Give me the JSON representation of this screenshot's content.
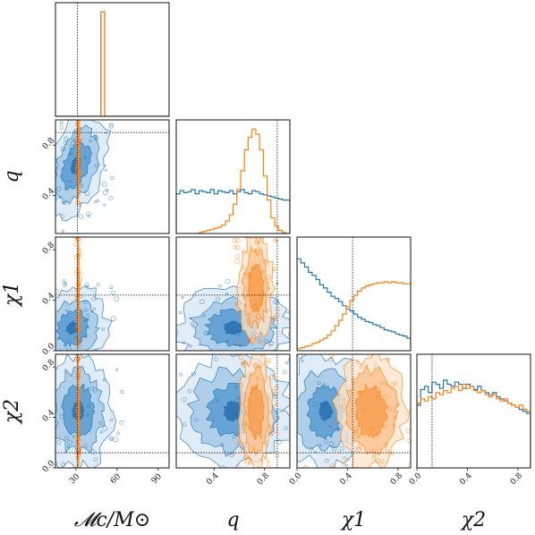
{
  "chart_data": {
    "type": "corner",
    "parameters": [
      {
        "key": "mc",
        "label": "𝓜c/M⊙",
        "range": [
          15,
          98
        ],
        "ticks": [
          {
            "v": 30,
            "t": "30"
          },
          {
            "v": 60,
            "t": "60"
          },
          {
            "v": 90,
            "t": "90"
          }
        ],
        "truth": 31
      },
      {
        "key": "q",
        "label": "q",
        "range": [
          0.1,
          1.0
        ],
        "ticks": [
          {
            "v": 0.4,
            "t": "0.4"
          },
          {
            "v": 0.8,
            "t": "0.8"
          }
        ],
        "truth": 0.9
      },
      {
        "key": "chi1",
        "label": "χ1",
        "range": [
          0.0,
          0.9
        ],
        "ticks": [
          {
            "v": 0.0,
            "t": "0.0"
          },
          {
            "v": 0.4,
            "t": "0.4"
          },
          {
            "v": 0.8,
            "t": "0.8"
          }
        ],
        "truth": 0.44
      },
      {
        "key": "chi2",
        "label": "χ2",
        "range": [
          0.0,
          0.9
        ],
        "ticks": [
          {
            "v": 0.0,
            "t": "0.0"
          },
          {
            "v": 0.4,
            "t": "0.4"
          },
          {
            "v": 0.8,
            "t": "0.8"
          }
        ],
        "truth": 0.12
      }
    ],
    "colors": {
      "blue": "#1f77b4",
      "orange": "#ff7f0e",
      "blue_fill": [
        "#dbe9f6",
        "#a6c9e7",
        "#5b9bd0",
        "#2a6fb0"
      ],
      "orange_fill": [
        "#fde3c8",
        "#fbbf88",
        "#f79a4a"
      ]
    },
    "marginals": [
      {
        "param": "mc",
        "blue": [
          0,
          0,
          0,
          0,
          0,
          0,
          0,
          0,
          0,
          0,
          0,
          0,
          1,
          0,
          0,
          0,
          0,
          0,
          0,
          0,
          0,
          0,
          0,
          0,
          0,
          0,
          0,
          0,
          0,
          0
        ],
        "orange": [
          0,
          0,
          0,
          0,
          0,
          0,
          0,
          0,
          0,
          0,
          0,
          0,
          1,
          0,
          0,
          0,
          0,
          0,
          0,
          0,
          0,
          0,
          0,
          0,
          0,
          0,
          0,
          0,
          0,
          0
        ]
      },
      {
        "param": "q",
        "blue": [
          0.38,
          0.41,
          0.39,
          0.4,
          0.42,
          0.38,
          0.41,
          0.4,
          0.39,
          0.42,
          0.38,
          0.41,
          0.4,
          0.39,
          0.41,
          0.38,
          0.4,
          0.42,
          0.39,
          0.38,
          0.41,
          0.4,
          0.38,
          0.37,
          0.36,
          0.35,
          0.34,
          0.33,
          0.32,
          0.32
        ],
        "orange": [
          0.0,
          0.0,
          0.0,
          0.0,
          0.0,
          0.0,
          0.01,
          0.02,
          0.03,
          0.04,
          0.05,
          0.06,
          0.08,
          0.12,
          0.18,
          0.28,
          0.42,
          0.6,
          0.8,
          0.92,
          1.0,
          0.95,
          0.8,
          0.55,
          0.32,
          0.15,
          0.07,
          0.03,
          0.01,
          0.0
        ]
      },
      {
        "param": "chi1",
        "blue": [
          0.88,
          0.84,
          0.8,
          0.75,
          0.72,
          0.68,
          0.63,
          0.6,
          0.56,
          0.52,
          0.5,
          0.47,
          0.43,
          0.4,
          0.38,
          0.35,
          0.32,
          0.3,
          0.28,
          0.27,
          0.25,
          0.24,
          0.22,
          0.2,
          0.19,
          0.18,
          0.16,
          0.15,
          0.14,
          0.12
        ],
        "orange": [
          0.02,
          0.03,
          0.04,
          0.05,
          0.07,
          0.08,
          0.1,
          0.12,
          0.15,
          0.19,
          0.24,
          0.29,
          0.35,
          0.42,
          0.48,
          0.53,
          0.57,
          0.6,
          0.62,
          0.63,
          0.64,
          0.65,
          0.65,
          0.66,
          0.65,
          0.66,
          0.65,
          0.65,
          0.64,
          0.64
        ]
      },
      {
        "param": "chi2",
        "blue": [
          0.6,
          0.75,
          0.78,
          0.72,
          0.82,
          0.8,
          0.76,
          0.84,
          0.8,
          0.78,
          0.82,
          0.8,
          0.76,
          0.8,
          0.78,
          0.75,
          0.78,
          0.74,
          0.72,
          0.7,
          0.72,
          0.68,
          0.66,
          0.64,
          0.62,
          0.6,
          0.58,
          0.56,
          0.54,
          0.52
        ],
        "orange": [
          0.62,
          0.66,
          0.64,
          0.68,
          0.66,
          0.72,
          0.7,
          0.74,
          0.72,
          0.76,
          0.78,
          0.74,
          0.8,
          0.76,
          0.78,
          0.74,
          0.72,
          0.74,
          0.7,
          0.68,
          0.7,
          0.66,
          0.64,
          0.66,
          0.62,
          0.6,
          0.58,
          0.6,
          0.56,
          0.54
        ]
      }
    ],
    "pairs": [
      {
        "x": "mc",
        "y": "q",
        "blue": {
          "cx": 0.18,
          "cy": 0.6,
          "sx": 0.25,
          "sy": 0.45,
          "tilt": -0.5
        },
        "orange": {
          "cx": 0.2,
          "cy": 0.7,
          "sx": 0.01,
          "sy": 0.35,
          "tilt": 0
        }
      },
      {
        "x": "mc",
        "y": "chi1",
        "blue": {
          "cx": 0.15,
          "cy": 0.2,
          "sx": 0.3,
          "sy": 0.35,
          "tilt": -0.3
        },
        "orange": {
          "cx": 0.2,
          "cy": 0.55,
          "sx": 0.01,
          "sy": 0.4,
          "tilt": 0
        }
      },
      {
        "x": "mc",
        "y": "chi2",
        "blue": {
          "cx": 0.2,
          "cy": 0.5,
          "sx": 0.3,
          "sy": 0.5,
          "tilt": 0
        },
        "orange": {
          "cx": 0.2,
          "cy": 0.5,
          "sx": 0.01,
          "sy": 0.5,
          "tilt": 0
        }
      },
      {
        "x": "q",
        "y": "chi1",
        "blue": {
          "cx": 0.5,
          "cy": 0.2,
          "sx": 0.5,
          "sy": 0.35,
          "tilt": 0
        },
        "orange": {
          "cx": 0.7,
          "cy": 0.55,
          "sx": 0.15,
          "sy": 0.45,
          "tilt": 0
        }
      },
      {
        "x": "q",
        "y": "chi2",
        "blue": {
          "cx": 0.5,
          "cy": 0.5,
          "sx": 0.5,
          "sy": 0.5,
          "tilt": 0
        },
        "orange": {
          "cx": 0.7,
          "cy": 0.5,
          "sx": 0.15,
          "sy": 0.5,
          "tilt": 0
        }
      },
      {
        "x": "chi1",
        "y": "chi2",
        "blue": {
          "cx": 0.25,
          "cy": 0.5,
          "sx": 0.35,
          "sy": 0.5,
          "tilt": 0
        },
        "orange": {
          "cx": 0.65,
          "cy": 0.5,
          "sx": 0.3,
          "sy": 0.5,
          "tilt": 0
        }
      }
    ]
  }
}
